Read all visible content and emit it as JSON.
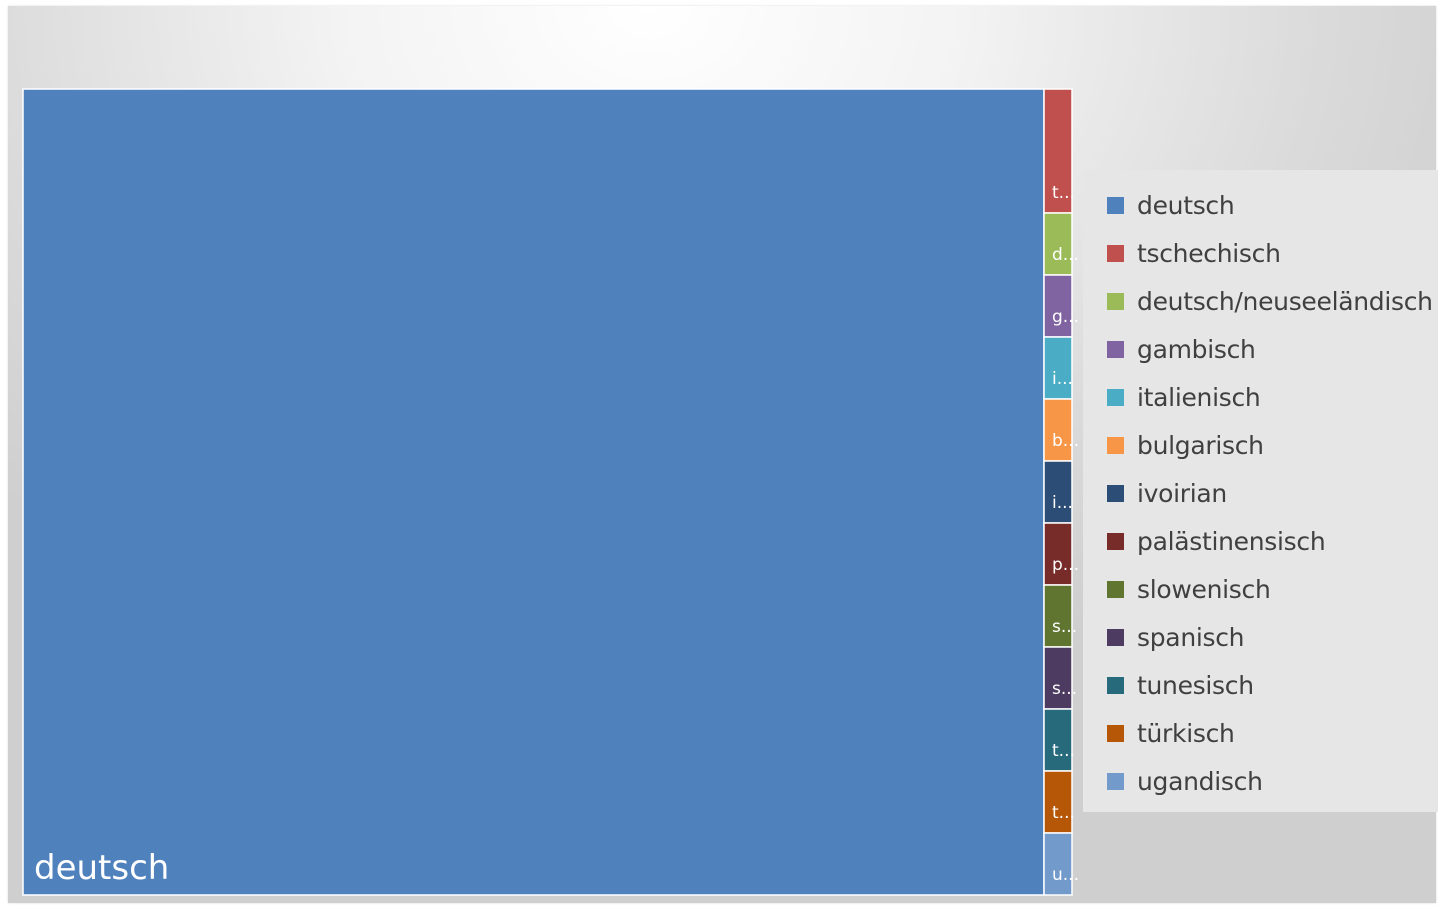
{
  "chart_data": {
    "type": "treemap",
    "categories": [
      "deutsch",
      "tschechisch",
      "deutsch/neuseeländisch",
      "gambisch",
      "italienisch",
      "bulgarisch",
      "ivoirian",
      "palästinensisch",
      "slowenisch",
      "spanisch",
      "tunesisch",
      "türkisch",
      "ugandisch"
    ],
    "values": [
      467,
      2,
      1,
      1,
      1,
      1,
      1,
      1,
      1,
      1,
      1,
      1,
      1
    ],
    "tile_labels": [
      "deutsch",
      "t...",
      "d...",
      "g...",
      "i...",
      "b...",
      "i...",
      "p...",
      "s...",
      "s...",
      "t...",
      "t...",
      "u..."
    ],
    "colors": [
      "#4f81bd",
      "#c0504d",
      "#9bbb59",
      "#8064a2",
      "#4bacc6",
      "#f79646",
      "#2c4d75",
      "#772c2a",
      "#5f7530",
      "#4d3b62",
      "#276a7c",
      "#b65708",
      "#729aca"
    ],
    "legend": {
      "position": "right",
      "entries": [
        "deutsch",
        "tschechisch",
        "deutsch/neuseeländisch",
        "gambisch",
        "italienisch",
        "bulgarisch",
        "ivoirian",
        "palästinensisch",
        "slowenisch",
        "spanisch",
        "tunesisch",
        "türkisch",
        "ugandisch"
      ]
    },
    "title": "",
    "xlabel": "",
    "ylabel": ""
  }
}
